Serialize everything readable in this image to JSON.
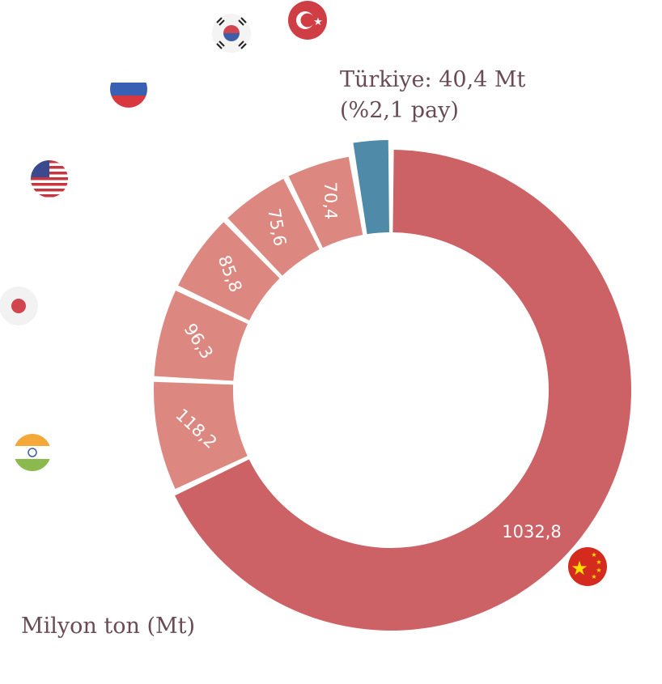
{
  "chart_data": {
    "type": "donut",
    "unit_label": "Milyon ton (Mt)",
    "segments": [
      {
        "country": "China",
        "flag": "china-flag-icon",
        "value": 1032.8,
        "label": "1032,8",
        "color": "#cc6266"
      },
      {
        "country": "India",
        "flag": "india-flag-icon",
        "value": 118.2,
        "label": "118,2",
        "color": "#dc8880"
      },
      {
        "country": "Japan",
        "flag": "japan-flag-icon",
        "value": 96.3,
        "label": "96,3",
        "color": "#dc8880"
      },
      {
        "country": "United States",
        "flag": "usa-flag-icon",
        "value": 85.8,
        "label": "85,8",
        "color": "#dc8880"
      },
      {
        "country": "Russia",
        "flag": "russia-flag-icon",
        "value": 75.6,
        "label": "75,6",
        "color": "#dc8880"
      },
      {
        "country": "South Korea",
        "flag": "south-korea-flag-icon",
        "value": 70.4,
        "label": "70,4",
        "color": "#dc8880"
      },
      {
        "country": "Türkiye",
        "flag": "turkey-flag-icon",
        "value": 40.4,
        "label": "",
        "color": "#4f8aa8"
      }
    ],
    "callout": {
      "line1": "Türkiye: 40,4 Mt",
      "line2": "(%2,1 pay)"
    }
  }
}
